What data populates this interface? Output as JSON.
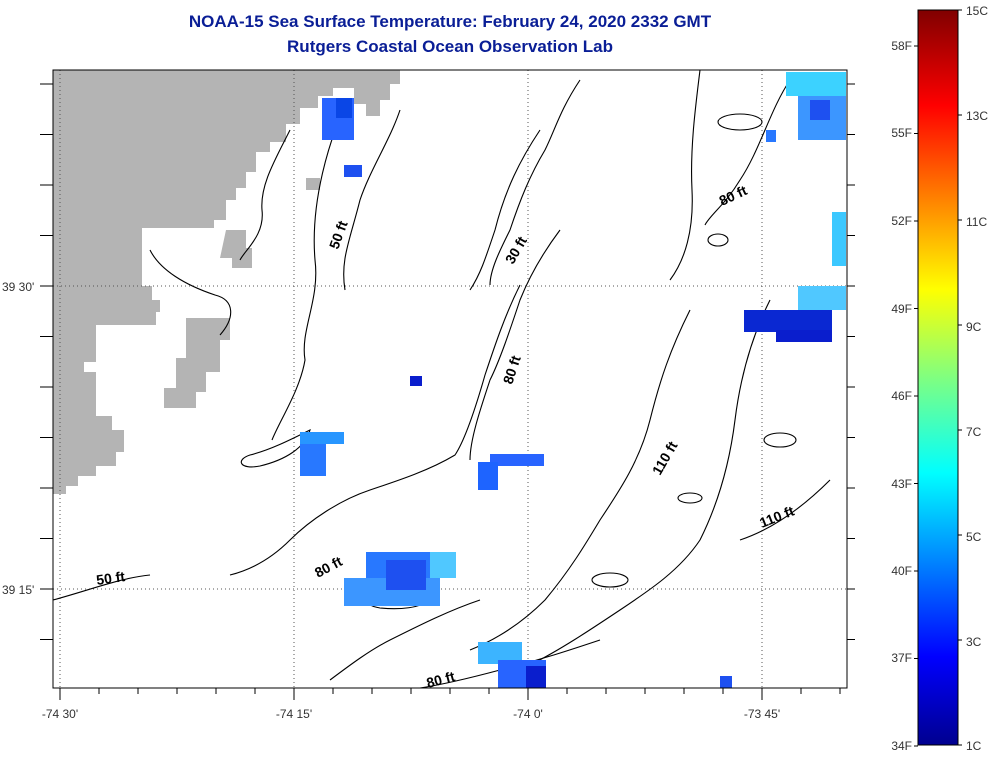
{
  "title": "NOAA-15 Sea Surface Temperature:  February 24, 2020 2332 GMT",
  "subtitle": "Rutgers Coastal Ocean Observation Lab",
  "axes": {
    "x_ticks": [
      "-74 30'",
      "-74 15'",
      "-74 0'",
      "-73 45'"
    ],
    "y_ticks": [
      "39 30'",
      "39 15'"
    ]
  },
  "colorbar": {
    "fahrenheit_labels": [
      "58F",
      "55F",
      "52F",
      "49F",
      "46F",
      "43F",
      "40F",
      "37F",
      "34F"
    ],
    "celsius_labels": [
      "15C",
      "13C",
      "11C",
      "9C",
      "7C",
      "5C",
      "3C",
      "1C"
    ]
  },
  "contour_labels": [
    "50 ft",
    "30 ft",
    "80 ft",
    "80 ft",
    "110 ft",
    "110 ft",
    "80 ft",
    "50 ft",
    "80 ft"
  ],
  "colors": {
    "title": "#0a1e96",
    "land": "#b4b4b4",
    "sst_dark_blue": "#0a1ecd",
    "sst_blue": "#2864ff",
    "sst_light_blue": "#3cb4ff",
    "sst_cyan": "#32d2ff"
  }
}
